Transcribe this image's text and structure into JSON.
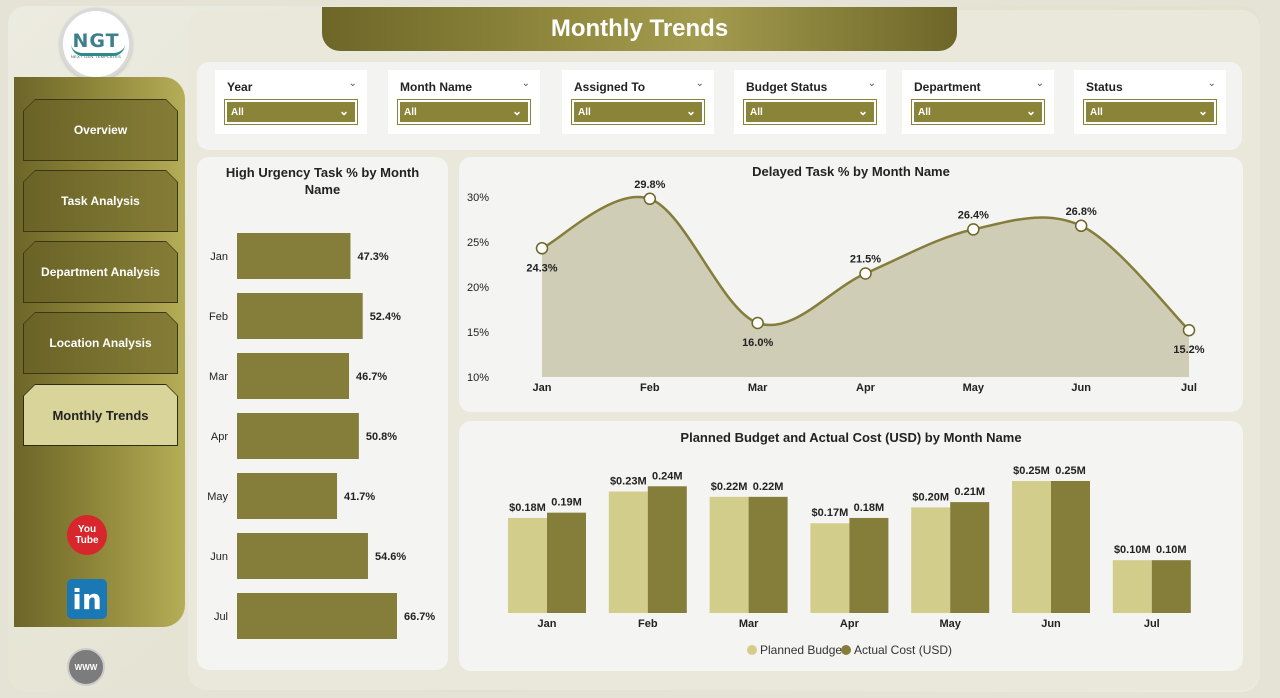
{
  "app": {
    "title": "Monthly Trends",
    "logo_text": "NGT",
    "logo_subtext": "NEXT GEN TEMPLATES"
  },
  "nav": [
    {
      "label": "Overview",
      "active": false
    },
    {
      "label": "Task Analysis",
      "active": false
    },
    {
      "label": "Department Analysis",
      "active": false
    },
    {
      "label": "Location Analysis",
      "active": false
    },
    {
      "label": "Monthly Trends",
      "active": true
    }
  ],
  "social": {
    "youtube": "You Tube",
    "linkedin": "in",
    "web": "WWW"
  },
  "filters": [
    {
      "label": "Year",
      "value": "All"
    },
    {
      "label": "Month Name",
      "value": "All"
    },
    {
      "label": "Assigned To",
      "value": "All"
    },
    {
      "label": "Budget Status",
      "value": "All"
    },
    {
      "label": "Department",
      "value": "All"
    },
    {
      "label": "Status",
      "value": "All"
    }
  ],
  "colors": {
    "accent": "#857d3a",
    "accent_light": "#d3cd8c",
    "area_fill": "#d0cdb7",
    "sidebar_dark": "#6c6528"
  },
  "chart_data": [
    {
      "type": "bar",
      "orientation": "horizontal",
      "title": "High Urgency Task % by Month Name",
      "categories": [
        "Jan",
        "Feb",
        "Mar",
        "Apr",
        "May",
        "Jun",
        "Jul"
      ],
      "values": [
        47.3,
        52.4,
        46.7,
        50.8,
        41.7,
        54.6,
        66.7
      ],
      "labels": [
        "47.3%",
        "52.4%",
        "46.7%",
        "50.8%",
        "41.7%",
        "54.6%",
        "66.7%"
      ]
    },
    {
      "type": "area",
      "title": "Delayed Task % by Month Name",
      "categories": [
        "Jan",
        "Feb",
        "Mar",
        "Apr",
        "May",
        "Jun",
        "Jul"
      ],
      "values": [
        24.3,
        29.8,
        16.0,
        21.5,
        26.4,
        26.8,
        15.2
      ],
      "labels": [
        "24.3%",
        "29.8%",
        "16.0%",
        "21.5%",
        "26.4%",
        "26.8%",
        "15.2%"
      ],
      "ylim": [
        10,
        30
      ],
      "yticks": [
        "30%",
        "25%",
        "20%",
        "15%",
        "10%"
      ]
    },
    {
      "type": "bar",
      "title": "Planned Budget and Actual Cost (USD) by Month Name",
      "categories": [
        "Jan",
        "Feb",
        "Mar",
        "Apr",
        "May",
        "Jun",
        "Jul"
      ],
      "series": [
        {
          "name": "Planned Budget",
          "values": [
            0.18,
            0.23,
            0.22,
            0.17,
            0.2,
            0.25,
            0.1
          ],
          "labels": [
            "$0.18M",
            "$0.23M",
            "$0.22M",
            "$0.17M",
            "$0.20M",
            "$0.25M",
            "$0.10M"
          ]
        },
        {
          "name": "Actual Cost (USD)",
          "values": [
            0.19,
            0.24,
            0.22,
            0.18,
            0.21,
            0.25,
            0.1
          ],
          "labels": [
            "0.19M",
            "0.24M",
            "0.22M",
            "0.18M",
            "0.21M",
            "0.25M",
            "0.10M"
          ]
        }
      ],
      "legend": "bottom"
    }
  ]
}
